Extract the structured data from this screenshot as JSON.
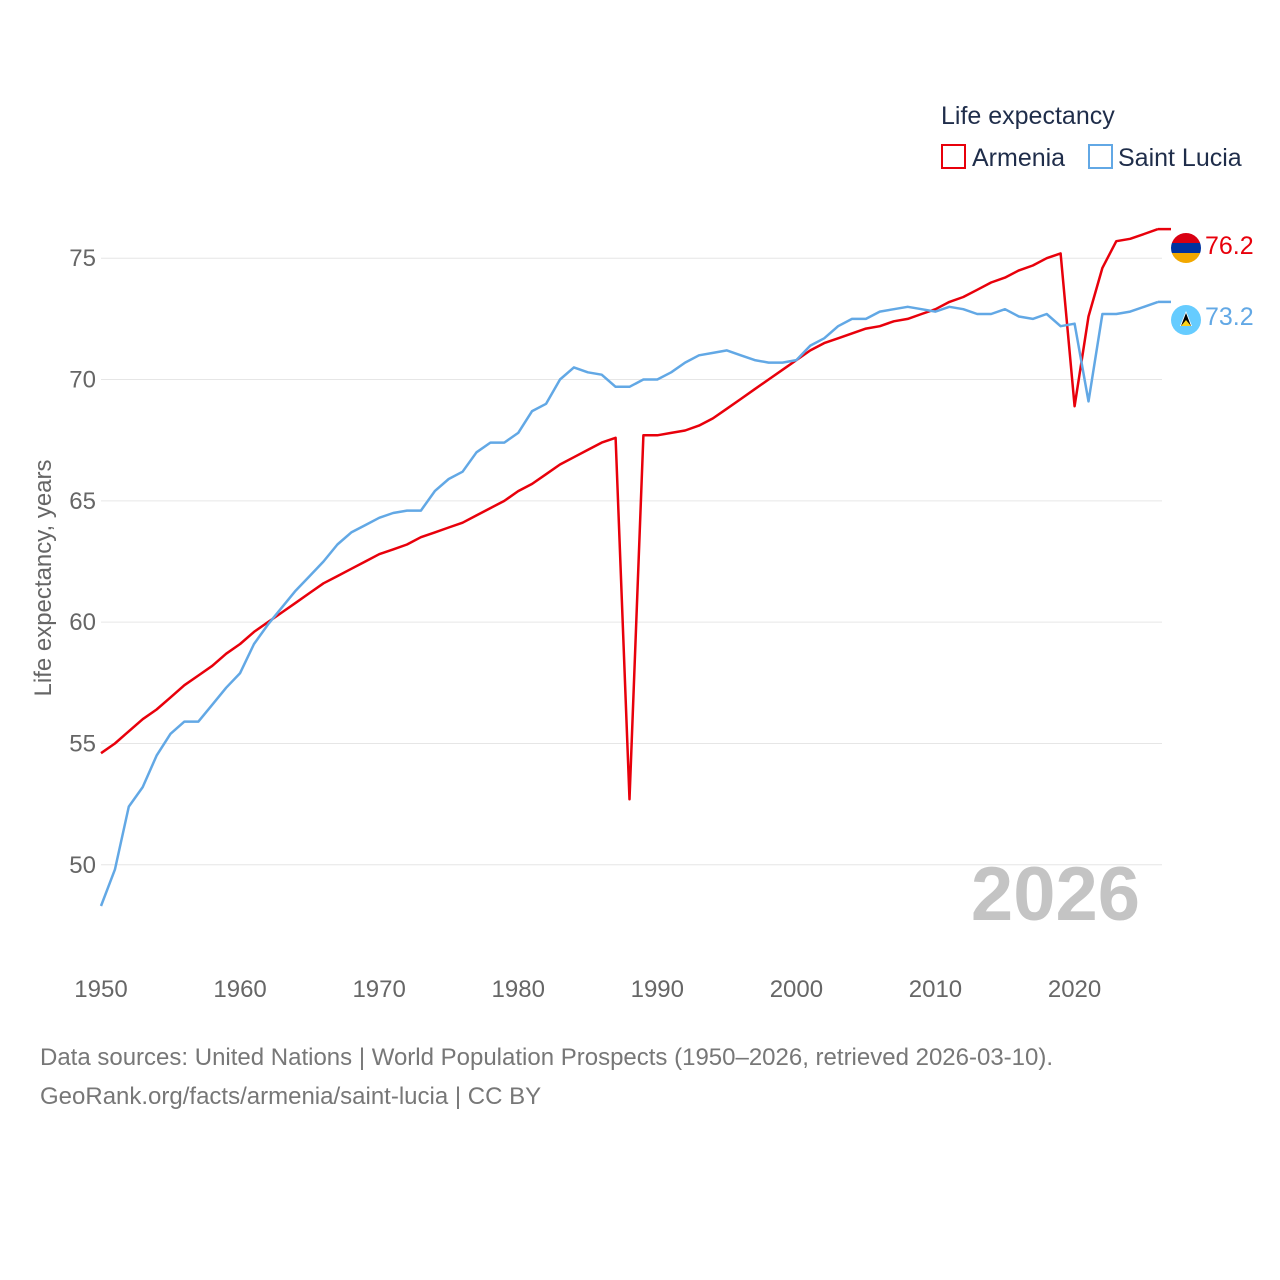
{
  "chart_data": {
    "type": "line",
    "legend_title": "Life expectancy",
    "ylabel": "Life expectancy, years",
    "xlabel": "",
    "ylim": [
      46.9,
      77.4
    ],
    "xlim": [
      1950,
      2026
    ],
    "yticks": [
      50,
      55,
      60,
      65,
      70,
      75
    ],
    "xticks": [
      1950,
      1960,
      1970,
      1980,
      1990,
      2000,
      2010,
      2020
    ],
    "current_year": "2026",
    "x": [
      1950,
      1951,
      1952,
      1953,
      1954,
      1955,
      1956,
      1957,
      1958,
      1959,
      1960,
      1961,
      1962,
      1963,
      1964,
      1965,
      1966,
      1967,
      1968,
      1969,
      1970,
      1971,
      1972,
      1973,
      1974,
      1975,
      1976,
      1977,
      1978,
      1979,
      1980,
      1981,
      1982,
      1983,
      1984,
      1985,
      1986,
      1987,
      1988,
      1989,
      1990,
      1991,
      1992,
      1993,
      1994,
      1995,
      1996,
      1997,
      1998,
      1999,
      2000,
      2001,
      2002,
      2003,
      2004,
      2005,
      2006,
      2007,
      2008,
      2009,
      2010,
      2011,
      2012,
      2013,
      2014,
      2015,
      2016,
      2017,
      2018,
      2019,
      2020,
      2021,
      2022,
      2023,
      2024,
      2025,
      2026
    ],
    "series": [
      {
        "name": "Armenia",
        "color": "#e8000b",
        "end_label": "76.2",
        "values": [
          54.6,
          55.0,
          55.5,
          56.0,
          56.4,
          56.9,
          57.4,
          57.8,
          58.2,
          58.7,
          59.1,
          59.6,
          60.0,
          60.4,
          60.8,
          61.2,
          61.6,
          61.9,
          62.2,
          62.5,
          62.8,
          63.0,
          63.2,
          63.5,
          63.7,
          63.9,
          64.1,
          64.4,
          64.7,
          65.0,
          65.4,
          65.7,
          66.1,
          66.5,
          66.8,
          67.1,
          67.4,
          67.6,
          52.7,
          67.7,
          67.7,
          67.8,
          67.9,
          68.1,
          68.4,
          68.8,
          69.2,
          69.6,
          70.0,
          70.4,
          70.8,
          71.2,
          71.5,
          71.7,
          71.9,
          72.1,
          72.2,
          72.4,
          72.5,
          72.7,
          72.9,
          73.2,
          73.4,
          73.7,
          74.0,
          74.2,
          74.5,
          74.7,
          75.0,
          75.2,
          68.9,
          72.6,
          74.6,
          75.7,
          75.8,
          76.0,
          76.2
        ]
      },
      {
        "name": "Saint Lucia",
        "color": "#62a8e5",
        "end_label": "73.2",
        "values": [
          48.3,
          49.8,
          52.4,
          53.2,
          54.5,
          55.4,
          55.9,
          55.9,
          56.6,
          57.3,
          57.9,
          59.1,
          59.9,
          60.6,
          61.3,
          61.9,
          62.5,
          63.2,
          63.7,
          64.0,
          64.3,
          64.5,
          64.6,
          64.6,
          65.4,
          65.9,
          66.2,
          67.0,
          67.4,
          67.4,
          67.8,
          68.7,
          69.0,
          70.0,
          70.5,
          70.3,
          70.2,
          69.7,
          69.7,
          70.0,
          70.0,
          70.3,
          70.7,
          71.0,
          71.1,
          71.2,
          71.0,
          70.8,
          70.7,
          70.7,
          70.8,
          71.4,
          71.7,
          72.2,
          72.5,
          72.5,
          72.8,
          72.9,
          73.0,
          72.9,
          72.8,
          73.0,
          72.9,
          72.7,
          72.7,
          72.9,
          72.6,
          72.5,
          72.7,
          72.2,
          72.3,
          69.1,
          72.7,
          72.7,
          72.8,
          73.0,
          73.2
        ]
      }
    ]
  },
  "source": {
    "line1": "Data sources: United Nations | World Population Prospects (1950–2026, retrieved 2026-03-10).",
    "line2": "GeoRank.org/facts/armenia/saint-lucia | CC BY"
  },
  "flags": {
    "armenia": {
      "top": "#d90012",
      "middle": "#0033a0",
      "bottom": "#f2a800"
    },
    "saint_lucia": {
      "field": "#66ccff",
      "triangle_outer": "#ffffff",
      "triangle_black": "#000000",
      "triangle_gold": "#fcd116"
    }
  }
}
